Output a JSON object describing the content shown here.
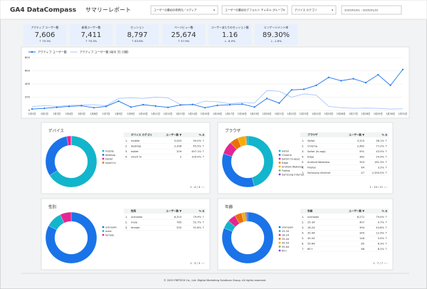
{
  "header": {
    "logo": "GA4 DataCompass",
    "title": "サマリーレポート",
    "filters": [
      "ユーザーの最初の参照元／メディア",
      "ユーザーの最初のデフォルト チャネル グループ",
      "デバイス カテゴリ"
    ],
    "date_range": "2025/01/01 - 2025/01/31"
  },
  "kpis": [
    {
      "label": "アクティブ ユーザー数",
      "value": "7,606",
      "change": "↑ 79.3%",
      "trend": "up"
    },
    {
      "label": "新規ユーザー数",
      "value": "7,411",
      "change": "↑ 79.3%",
      "trend": "up"
    },
    {
      "label": "セッション",
      "value": "8,797",
      "change": "↑ 83.6%",
      "trend": "up"
    },
    {
      "label": "ページビュー数",
      "value": "25,674",
      "change": "↑ 57.9%",
      "trend": "up"
    },
    {
      "label": "ユーザーあたりのセッション数",
      "value": "1.16",
      "change": "↓ -6.9%",
      "trend": "down"
    },
    {
      "label": "エンゲージメント率",
      "value": "89.30%",
      "change": "↓ -1.6%",
      "trend": "down"
    }
  ],
  "chart_data": {
    "type": "line",
    "categories": [
      "1月1日",
      "1月2日",
      "1月3日",
      "1月4日",
      "1月5日",
      "1月6日",
      "1月7日",
      "1月8日",
      "1月9日",
      "1月10日",
      "1月11日",
      "1月12日",
      "1月13日",
      "1月14日",
      "1月15日",
      "1月16日",
      "1月17日",
      "1月18日",
      "1月19日",
      "1月20日",
      "1月21日",
      "1月22日",
      "1月23日",
      "1月24日",
      "1月25日",
      "1月26日",
      "1月27日",
      "1月28日",
      "1月29日",
      "1月30日",
      "1月31日"
    ],
    "series": [
      {
        "name": "アクティブ ユーザー数",
        "color": "#1a73e8",
        "markers": true,
        "values": [
          20,
          30,
          45,
          60,
          70,
          40,
          60,
          140,
          50,
          85,
          65,
          45,
          80,
          90,
          40,
          75,
          85,
          95,
          50,
          180,
          110,
          310,
          320,
          380,
          500,
          450,
          480,
          420,
          540,
          380,
          620
        ]
      },
      {
        "name": "アクティブ ユーザー数 (前月 31 日間)",
        "color": "#a8c7fa",
        "markers": false,
        "values": [
          60,
          70,
          60,
          75,
          80,
          85,
          70,
          180,
          190,
          180,
          200,
          190,
          90,
          80,
          140,
          130,
          100,
          120,
          110,
          300,
          290,
          200,
          250,
          230,
          60,
          40,
          30,
          35,
          30,
          20,
          25
        ]
      }
    ],
    "ylim": [
      0,
      800
    ],
    "yticks": [
      0,
      200,
      400,
      600,
      800
    ],
    "grid": true
  },
  "panels": [
    {
      "title": "デバイス",
      "columns": [
        "デバイス カテゴリ",
        "ユーザー数 ▼",
        "% Δ"
      ],
      "pagination": "1 - 4 / 4",
      "rows": [
        {
          "rank": "1.",
          "name": "mobile",
          "users": {
            "value": 5040,
            "label": "5,040"
          },
          "change": "90.0% ↑",
          "color": "#12b5cb"
        },
        {
          "rank": "2.",
          "name": "desktop",
          "users": {
            "value": 2398,
            "label": "2,398"
          },
          "change": "45.5% ↑",
          "color": "#1a73e8"
        },
        {
          "rank": "3.",
          "name": "tablet",
          "users": {
            "value": 209,
            "label": "209"
          },
          "change": "497.1% ↑",
          "color": "#e52592"
        },
        {
          "rank": "4.",
          "name": "smart tv",
          "users": {
            "value": 2,
            "label": "2"
          },
          "change": "100.0% ↑",
          "color": "#e8710a"
        }
      ]
    },
    {
      "title": "ブラウザ",
      "columns": [
        "ブラウザ",
        "ユーザー数 ▼",
        "% Δ"
      ],
      "pagination": "1 - 10 / 11",
      "rows": [
        {
          "rank": "1.",
          "name": "Safari",
          "users": {
            "value": 3310,
            "label": "3,310"
          },
          "change": "58.1% ↑",
          "color": "#12b5cb"
        },
        {
          "rank": "2.",
          "name": "Chrome",
          "users": {
            "value": 2482,
            "label": "2,482"
          },
          "change": "77.2% ↑",
          "color": "#1a73e8"
        },
        {
          "rank": "3.",
          "name": "Safari (in-app)",
          "users": {
            "value": 591,
            "label": "591"
          },
          "change": "43.5% ↑",
          "color": "#e52592"
        },
        {
          "rank": "4.",
          "name": "Edge",
          "users": {
            "value": 382,
            "label": "382"
          },
          "change": "24.4% ↑",
          "color": "#e8710a"
        },
        {
          "rank": "5.",
          "name": "Android Webview",
          "users": {
            "value": 354,
            "label": "354"
          },
          "change": "161.3% ↑",
          "color": "#f9ab00"
        },
        {
          "rank": "6.",
          "name": "Firefox",
          "users": {
            "value": 64,
            "label": "64"
          },
          "change": "3.2% ↑",
          "color": "#7cb342"
        },
        {
          "rank": "7.",
          "name": "Samsung Internet",
          "users": {
            "value": 47,
            "label": "47"
          },
          "change": "2,350.0% ↑",
          "color": "#9334e6"
        }
      ]
    },
    {
      "title": "性別",
      "columns": [
        "性別",
        "ユーザー数 ▼",
        "% Δ"
      ],
      "pagination": "1 - 3 / 3",
      "rows": [
        {
          "rank": "1.",
          "name": "unknown",
          "users": {
            "value": 6310,
            "label": "6,310"
          },
          "change": "79.9% ↑",
          "color": "#1a73e8"
        },
        {
          "rank": "2.",
          "name": "male",
          "users": {
            "value": 765,
            "label": "765"
          },
          "change": "52.7% ↑",
          "color": "#12b5cb"
        },
        {
          "rank": "3.",
          "name": "female",
          "users": {
            "value": 535,
            "label": "535"
          },
          "change": "91.8% ↑",
          "color": "#e52592"
        }
      ]
    },
    {
      "title": "年齢",
      "columns": [
        "年齢",
        "ユーザー数 ▼",
        "% Δ"
      ],
      "pagination": "1 - 7 / 7",
      "rows": [
        {
          "rank": "1.",
          "name": "unknown",
          "users": {
            "value": 6272,
            "label": "6,272"
          },
          "change": "79.0% ↑",
          "color": "#1a73e8"
        },
        {
          "rank": "2.",
          "name": "25-34",
          "users": {
            "value": 407,
            "label": "407"
          },
          "change": "9.7% ↑",
          "color": "#12b5cb"
        },
        {
          "rank": "3.",
          "name": "18-24",
          "users": {
            "value": 394,
            "label": "394"
          },
          "change": "43.8% ↑",
          "color": "#e52592"
        },
        {
          "rank": "4.",
          "name": "35-44",
          "users": {
            "value": 349,
            "label": "349"
          },
          "change": "12.9% ↑",
          "color": "#e8710a"
        },
        {
          "rank": "5.",
          "name": "45-54",
          "users": {
            "value": 148,
            "label": "148"
          },
          "change": "5.0% ↑",
          "color": "#f9ab00"
        },
        {
          "rank": "6.",
          "name": "55-64",
          "users": {
            "value": 85,
            "label": "85"
          },
          "change": "6.3% ↑",
          "color": "#7cb342"
        },
        {
          "rank": "7.",
          "name": "65+",
          "users": {
            "value": 66,
            "label": "66"
          },
          "change": "8.2% ↑",
          "color": "#9334e6"
        }
      ]
    }
  ],
  "footer": "© 2025 FIBTECH Co., Ltd. Digital Marketing Solutions Group. All rights reserved."
}
